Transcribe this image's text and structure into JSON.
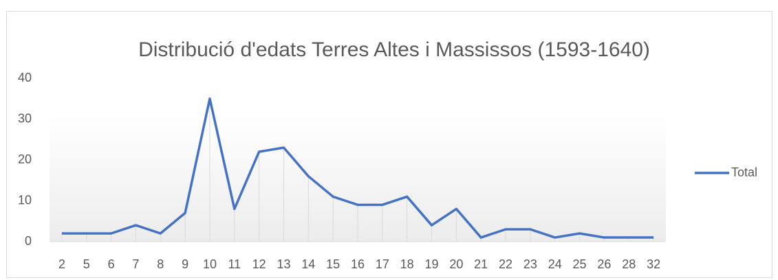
{
  "chart_data": {
    "type": "line",
    "title": "Distribució d'edats Terres Altes i Massissos (1593-1640)",
    "categories": [
      2,
      5,
      6,
      7,
      8,
      9,
      10,
      11,
      12,
      13,
      14,
      15,
      16,
      17,
      18,
      19,
      20,
      21,
      22,
      23,
      24,
      25,
      26,
      28,
      32
    ],
    "series": [
      {
        "name": "Total",
        "color": "#4472c4",
        "values": [
          2,
          2,
          2,
          4,
          2,
          7,
          35,
          8,
          22,
          23,
          16,
          11,
          9,
          9,
          11,
          4,
          8,
          1,
          3,
          3,
          1,
          2,
          1,
          1,
          1
        ]
      }
    ],
    "ylim": [
      0,
      40
    ],
    "yticks": [
      0,
      10,
      20,
      30,
      40
    ],
    "legend": "right"
  }
}
